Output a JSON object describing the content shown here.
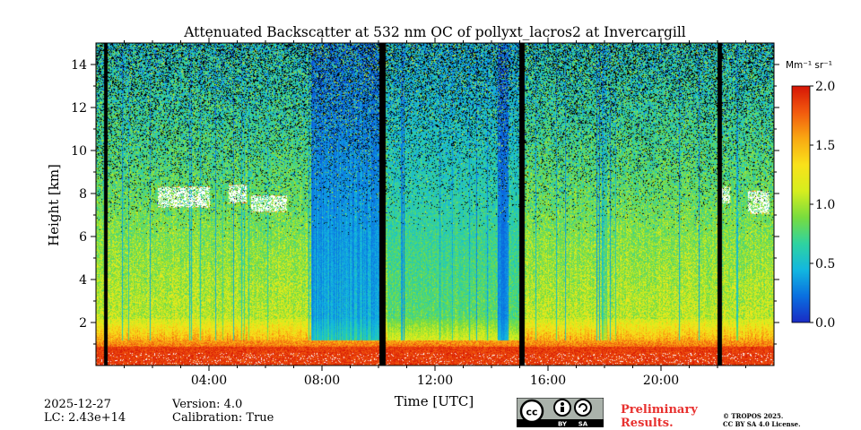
{
  "chart_data": {
    "type": "heatmap",
    "title": "Attenuated Backscatter at 532 nm OC of pollyxt_lacros2 at Invercargill",
    "xlabel": "Time [UTC]",
    "ylabel": "Height [km]",
    "xlim_hours": [
      0,
      24
    ],
    "ylim_km": [
      0,
      15
    ],
    "x_ticks": [
      {
        "value": 4,
        "label": "04:00"
      },
      {
        "value": 8,
        "label": "08:00"
      },
      {
        "value": 12,
        "label": "12:00"
      },
      {
        "value": 16,
        "label": "16:00"
      },
      {
        "value": 20,
        "label": "20:00"
      }
    ],
    "y_ticks": [
      {
        "value": 2,
        "label": "2"
      },
      {
        "value": 4,
        "label": "4"
      },
      {
        "value": 6,
        "label": "6"
      },
      {
        "value": 8,
        "label": "8"
      },
      {
        "value": 10,
        "label": "10"
      },
      {
        "value": 12,
        "label": "12"
      },
      {
        "value": 14,
        "label": "14"
      }
    ],
    "colorbar": {
      "unit_label": "Mm⁻¹ sr⁻¹",
      "range": [
        0.0,
        2.0
      ],
      "ticks": [
        {
          "value": 0.0,
          "label": "0.0"
        },
        {
          "value": 0.5,
          "label": "0.5"
        },
        {
          "value": 1.0,
          "label": "1.0"
        },
        {
          "value": 1.5,
          "label": "1.5"
        },
        {
          "value": 2.0,
          "label": "2.0"
        }
      ],
      "colormap": [
        "#1a2bc4",
        "#0a6fe0",
        "#12b7e0",
        "#2fd3a0",
        "#78dc3e",
        "#d6ee1e",
        "#f9e21a",
        "#f9a812",
        "#f25a0e",
        "#d61506"
      ]
    },
    "cloud_layers": [
      {
        "start_h": 2.2,
        "end_h": 4.0,
        "base_km": 7.4,
        "top_km": 8.3
      },
      {
        "start_h": 4.7,
        "end_h": 5.3,
        "base_km": 7.6,
        "top_km": 8.4
      },
      {
        "start_h": 5.5,
        "end_h": 6.7,
        "base_km": 7.2,
        "top_km": 7.9
      },
      {
        "start_h": 22.0,
        "end_h": 22.4,
        "base_km": 7.6,
        "top_km": 8.3
      },
      {
        "start_h": 23.1,
        "end_h": 23.8,
        "base_km": 7.1,
        "top_km": 8.1
      }
    ],
    "data_gaps_hours": [
      [
        0.3,
        0.35
      ],
      [
        10.05,
        10.2
      ],
      [
        15.0,
        15.13
      ],
      [
        22.0,
        22.12
      ]
    ],
    "dark_blue_regions": [
      [
        7.6,
        9.8
      ],
      [
        9.8,
        10.05
      ],
      [
        14.2,
        14.6
      ]
    ]
  },
  "footer": {
    "date": "2025-12-27",
    "lc": "LC: 2.43e+14",
    "version": "Version: 4.0",
    "calibration": "Calibration: True",
    "preliminary_line1": "Preliminary",
    "preliminary_line2": "Results.",
    "copyright_line1": "© TROPOS 2025.",
    "copyright_line2": "CC BY SA 4.0 License.",
    "license_badge": {
      "by": "BY",
      "sa": "SA"
    }
  }
}
